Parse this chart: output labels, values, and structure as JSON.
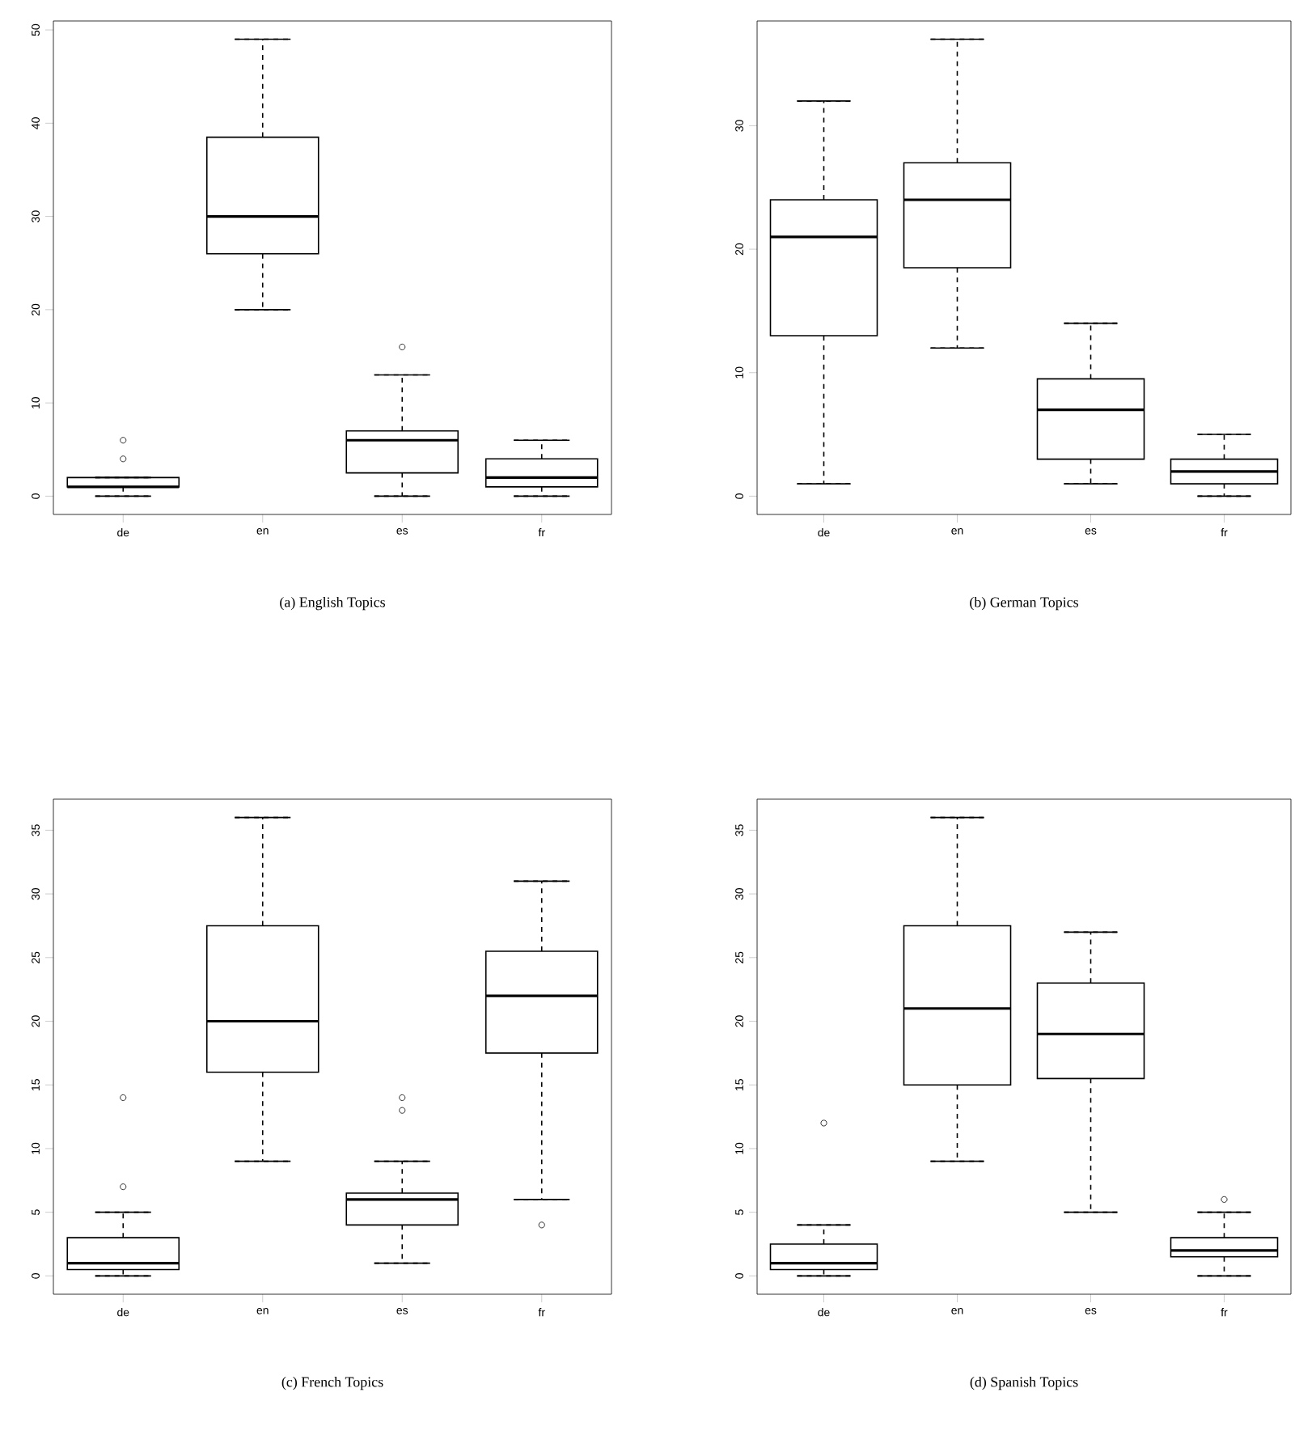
{
  "chart_data": [
    {
      "type": "box",
      "title": "(a)  English Topics",
      "categories": [
        "de",
        "en",
        "es",
        "fr"
      ],
      "ylim": [
        -1.96,
        50.96
      ],
      "yticks": [
        0,
        10,
        20,
        30,
        40,
        50
      ],
      "boxes": [
        {
          "low": 0,
          "q1": 1,
          "median": 1,
          "q3": 2,
          "high": 2,
          "outliers": [
            4,
            6
          ]
        },
        {
          "low": 20,
          "q1": 26,
          "median": 30,
          "q3": 38.5,
          "high": 49
        },
        {
          "low": 0,
          "q1": 2.5,
          "median": 6,
          "q3": 7,
          "high": 13,
          "outliers": [
            16
          ]
        },
        {
          "low": 0,
          "q1": 1,
          "median": 2,
          "q3": 4,
          "high": 6
        }
      ]
    },
    {
      "type": "box",
      "title": "(b)  German Topics",
      "categories": [
        "de",
        "en",
        "es",
        "fr"
      ],
      "ylim": [
        -1.48,
        38.48
      ],
      "yticks": [
        0,
        10,
        20,
        30
      ],
      "boxes": [
        {
          "low": 1,
          "q1": 13,
          "median": 21,
          "q3": 24,
          "high": 32
        },
        {
          "low": 12,
          "q1": 18.5,
          "median": 24,
          "q3": 27,
          "high": 37
        },
        {
          "low": 1,
          "q1": 3,
          "median": 7,
          "q3": 9.5,
          "high": 14
        },
        {
          "low": 0,
          "q1": 1,
          "median": 2,
          "q3": 3,
          "high": 5
        }
      ]
    },
    {
      "type": "box",
      "title": "(c)  French Topics",
      "categories": [
        "de",
        "en",
        "es",
        "fr"
      ],
      "ylim": [
        -1.44,
        37.44
      ],
      "yticks": [
        0,
        5,
        10,
        15,
        20,
        25,
        30,
        35
      ],
      "boxes": [
        {
          "low": 0,
          "q1": 0.5,
          "median": 1,
          "q3": 3,
          "high": 5,
          "outliers": [
            7,
            14
          ]
        },
        {
          "low": 9,
          "q1": 16,
          "median": 20,
          "q3": 27.5,
          "high": 36
        },
        {
          "low": 1,
          "q1": 4,
          "median": 6,
          "q3": 6.5,
          "high": 9,
          "outliers": [
            13,
            14
          ]
        },
        {
          "low": 6,
          "q1": 17.5,
          "median": 22,
          "q3": 25.5,
          "high": 31,
          "outliers": [
            4
          ]
        }
      ]
    },
    {
      "type": "box",
      "title": "(d)  Spanish Topics",
      "categories": [
        "de",
        "en",
        "es",
        "fr"
      ],
      "ylim": [
        -1.44,
        37.44
      ],
      "yticks": [
        0,
        5,
        10,
        15,
        20,
        25,
        30,
        35
      ],
      "boxes": [
        {
          "low": 0,
          "q1": 0.5,
          "median": 1,
          "q3": 2.5,
          "high": 4,
          "outliers": [
            12
          ]
        },
        {
          "low": 9,
          "q1": 15,
          "median": 21,
          "q3": 27.5,
          "high": 36
        },
        {
          "low": 5,
          "q1": 15.5,
          "median": 19,
          "q3": 23,
          "high": 27
        },
        {
          "low": 0,
          "q1": 1.5,
          "median": 2,
          "q3": 3,
          "high": 5,
          "outliers": [
            6
          ]
        }
      ]
    }
  ]
}
